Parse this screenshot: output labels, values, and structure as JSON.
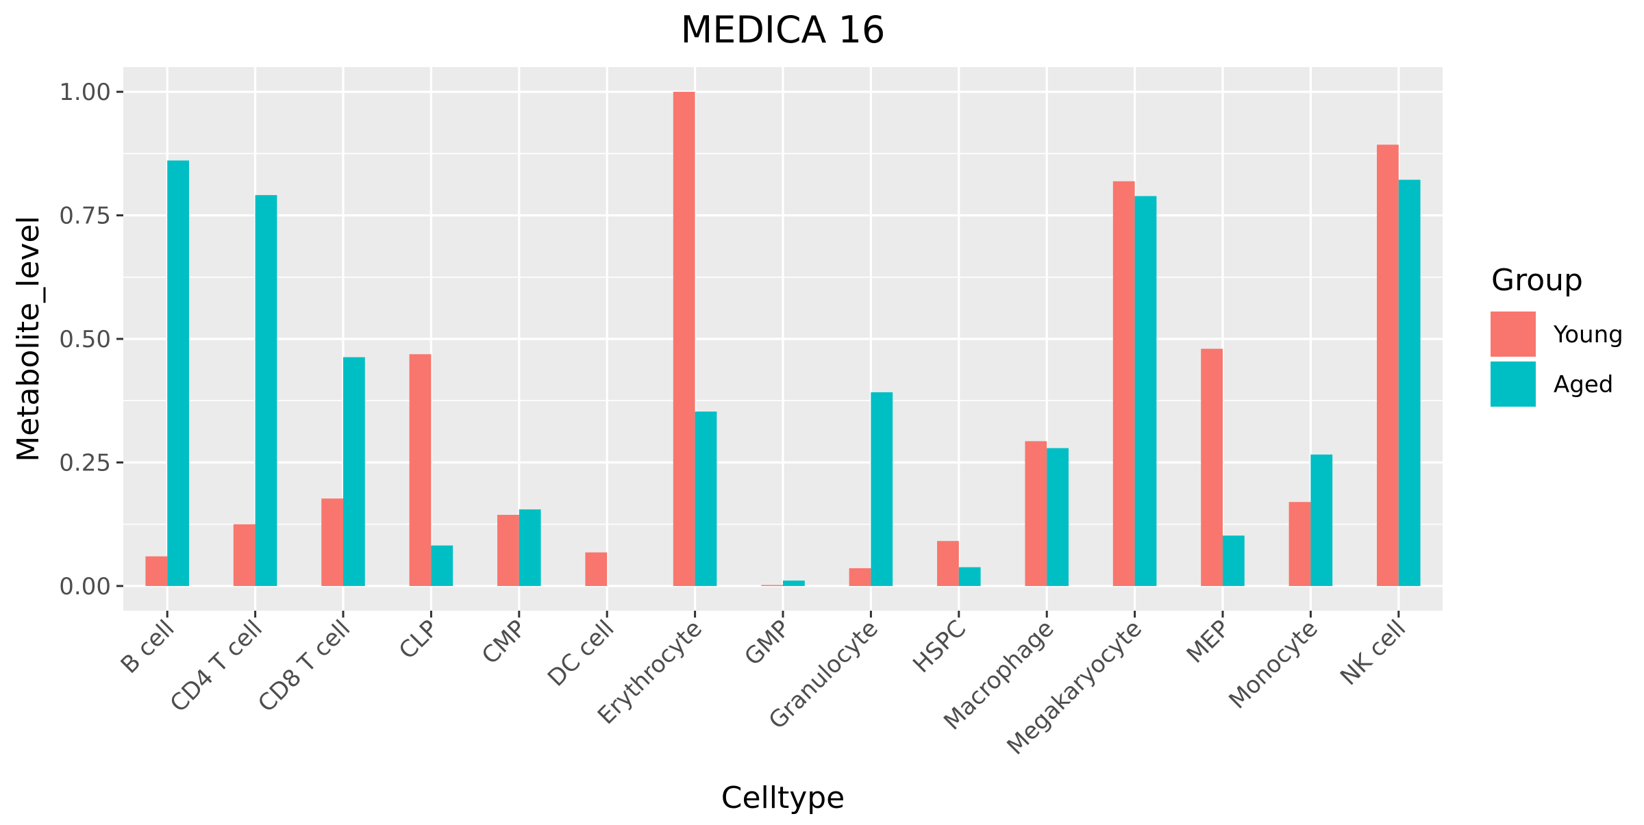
{
  "chart_data": {
    "type": "bar",
    "title": "MEDICA 16",
    "xlabel": "Celltype",
    "ylabel": "Metabolite_level",
    "categories": [
      "B cell",
      "CD4 T cell",
      "CD8 T cell",
      "CLP",
      "CMP",
      "DC cell",
      "Erythrocyte",
      "GMP",
      "Granulocyte",
      "HSPC",
      "Macrophage",
      "Megakaryocyte",
      "MEP",
      "Monocyte",
      "NK cell"
    ],
    "series": [
      {
        "name": "Young",
        "color": "#F8766D",
        "values": [
          0.06,
          0.125,
          0.177,
          0.469,
          0.144,
          0.068,
          1.0,
          0.002,
          0.036,
          0.091,
          0.293,
          0.819,
          0.48,
          0.17,
          0.893
        ]
      },
      {
        "name": "Aged",
        "color": "#00BFC4",
        "values": [
          0.861,
          0.791,
          0.463,
          0.082,
          0.155,
          null,
          0.353,
          0.011,
          0.392,
          0.038,
          0.279,
          0.789,
          0.102,
          0.266,
          0.822
        ]
      }
    ],
    "ylim": [
      -0.05,
      1.05
    ],
    "yticks": [
      0,
      0.25,
      0.5,
      0.75,
      1.0
    ],
    "ytick_labels": [
      "0.00",
      "0.25",
      "0.50",
      "0.75",
      "1.00"
    ],
    "legend": {
      "title": "Group",
      "position": "right"
    },
    "grid": true,
    "panel_background": "#EBEBEB"
  }
}
